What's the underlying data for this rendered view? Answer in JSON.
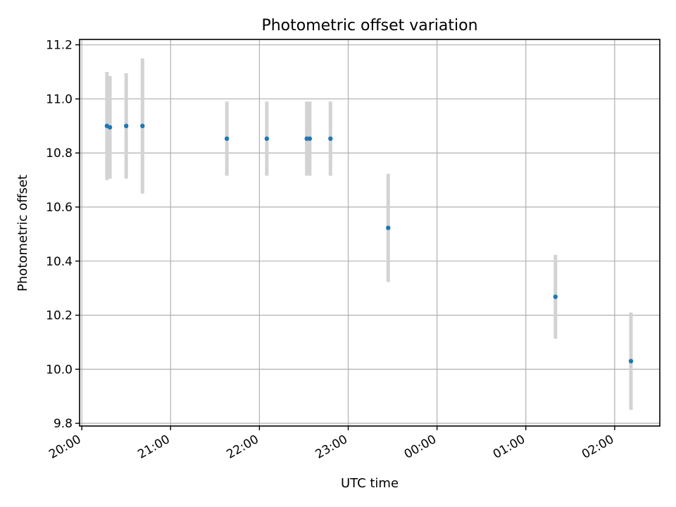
{
  "chart_data": {
    "type": "scatter",
    "title": "Photometric offset variation",
    "xlabel": "UTC time",
    "ylabel": "Photometric offset",
    "x_axis_type": "time",
    "xlim": [
      "20:00",
      "02:30"
    ],
    "ylim": [
      9.79,
      11.22
    ],
    "x_ticks": [
      "20:00",
      "21:00",
      "22:00",
      "23:00",
      "00:00",
      "01:00",
      "02:00"
    ],
    "y_ticks": [
      9.8,
      10.0,
      10.2,
      10.4,
      10.6,
      10.8,
      11.0,
      11.2
    ],
    "y_tick_labels": [
      "9.8",
      "10.0",
      "10.2",
      "10.4",
      "10.6",
      "10.8",
      "11.0",
      "11.2"
    ],
    "grid": true,
    "legend": null,
    "series": [
      {
        "marker_color": "#1f77b4",
        "errorbar_color": "#d3d3d3",
        "points": [
          {
            "time": "20:17",
            "y": 10.9,
            "yerr": 0.2
          },
          {
            "time": "20:19",
            "y": 10.895,
            "yerr": 0.19
          },
          {
            "time": "20:30",
            "y": 10.9,
            "yerr": 0.195
          },
          {
            "time": "20:41",
            "y": 10.9,
            "yerr": 0.25
          },
          {
            "time": "21:38",
            "y": 10.853,
            "yerr": 0.137
          },
          {
            "time": "22:05",
            "y": 10.853,
            "yerr": 0.137
          },
          {
            "time": "22:32",
            "y": 10.853,
            "yerr": 0.137
          },
          {
            "time": "22:34",
            "y": 10.853,
            "yerr": 0.137
          },
          {
            "time": "22:48",
            "y": 10.853,
            "yerr": 0.137
          },
          {
            "time": "23:27",
            "y": 10.523,
            "yerr": 0.2
          },
          {
            "time": "01:20",
            "y": 10.268,
            "yerr": 0.155
          },
          {
            "time": "02:11",
            "y": 10.03,
            "yerr": 0.18
          }
        ]
      }
    ]
  }
}
